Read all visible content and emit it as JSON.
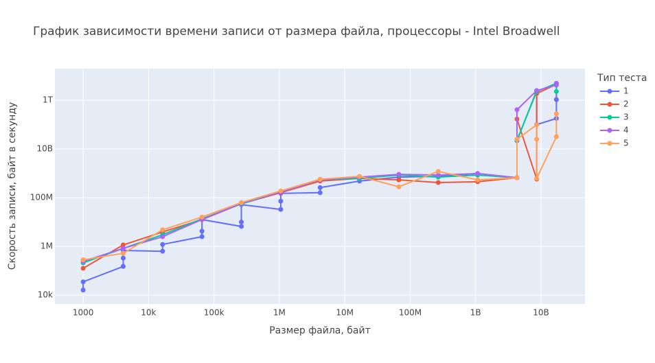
{
  "chart_data": {
    "type": "line",
    "title": "График зависимости времени записи от размера файла, процессоры - Intel Broadwell",
    "x_label": "Размер файла, байт",
    "y_label": "Скорость записи, байт в секунду",
    "legend_title": "Тип теста",
    "log_x": true,
    "log_y": true,
    "grid": true,
    "legend_position": "right",
    "xlim": [
      370,
      47000000000
    ],
    "ylim": [
      4300,
      20000000000000
    ],
    "xticks": [
      1000,
      {
        "value": 10000,
        "label": "10k"
      },
      {
        "value": 100000,
        "label": "100k"
      },
      {
        "value": 1000000,
        "label": "1M"
      },
      {
        "value": 10000000,
        "label": "10M"
      },
      {
        "value": 100000000,
        "label": "100M"
      },
      {
        "value": 1000000000,
        "label": "1B"
      },
      {
        "value": 10000000000,
        "label": "10B"
      }
    ],
    "yticks": [
      {
        "value": 10000,
        "label": "10k"
      },
      {
        "value": 1000000,
        "label": "1M"
      },
      {
        "value": 100000000,
        "label": "100M"
      },
      {
        "value": 10000000000,
        "label": "10B"
      },
      {
        "value": 1000000000000,
        "label": "1T"
      }
    ],
    "series": [
      {
        "name": "1",
        "color": "#636efa",
        "x": [
          1000,
          1000,
          4096,
          4096,
          4096,
          16384,
          16384,
          65536,
          65536,
          65536,
          262144,
          262144,
          262144,
          1048576,
          1048576,
          1048576,
          4194304,
          4194304,
          16777216,
          67108864,
          268435456,
          1073741824,
          4294967296,
          4294967296,
          8589934592,
          8589934592,
          17179869184,
          17179869184,
          17179869184
        ],
        "values": [
          16000,
          35000,
          150000,
          330000,
          680000,
          630000,
          1200000,
          2500000,
          4200000,
          12600000,
          6600000,
          10000000,
          52000000,
          33000000,
          72000000,
          150000000,
          160000000,
          260000000,
          480000000,
          700000000,
          750000000,
          980000000,
          660000000,
          22000000000,
          2500000000000,
          100000000000,
          180000000000,
          1070000000000,
          4700000000000
        ]
      },
      {
        "name": "2",
        "color": "#EF553B",
        "x": [
          1000,
          4096,
          16384,
          65536,
          262144,
          1048576,
          4194304,
          16777216,
          67108864,
          268435456,
          1073741824,
          4294967296,
          4294967296,
          8589934592,
          8589934592,
          17179869184
        ],
        "values": [
          126000,
          1150000,
          3900000,
          12600000,
          56000000,
          160000000,
          480000000,
          620000000,
          540000000,
          420000000,
          450000000,
          660000000,
          170000000000,
          580000000,
          1900000000000,
          4500000000000
        ]
      },
      {
        "name": "3",
        "color": "#00cc96",
        "x": [
          1000,
          4096,
          16384,
          65536,
          262144,
          1048576,
          4194304,
          16777216,
          67108864,
          268435456,
          1073741824,
          4294967296,
          4294967296,
          8589934592,
          17179869184,
          17179869184
        ],
        "values": [
          210000,
          830000,
          3000000,
          13500000,
          56000000,
          170000000,
          540000000,
          620000000,
          850000000,
          700000000,
          850000000,
          660000000,
          23000000000,
          2300000000000,
          5000000000000,
          2300000000000
        ]
      },
      {
        "name": "4",
        "color": "#ab63fa",
        "x": [
          1000,
          4096,
          16384,
          65536,
          262144,
          1048576,
          4194304,
          16777216,
          67108864,
          268435456,
          1073741824,
          4294967296,
          4294967296,
          8589934592,
          17179869184,
          17179869184
        ],
        "values": [
          240000,
          830000,
          2500000,
          12600000,
          59000000,
          170000000,
          540000000,
          700000000,
          910000000,
          850000000,
          980000000,
          660000000,
          410000000000,
          2500000000000,
          4200000000000,
          5000000000000
        ]
      },
      {
        "name": "5",
        "color": "#FFA15A",
        "x": [
          1000,
          4096,
          16384,
          65536,
          262144,
          1048576,
          4194304,
          16777216,
          67108864,
          268435456,
          1073741824,
          4294967296,
          4294967296,
          8589934592,
          8589934592,
          8589934592,
          17179869184,
          17179869184
        ],
        "values": [
          280000,
          520000,
          4800000,
          16000000,
          63000000,
          190000000,
          570000000,
          750000000,
          280000000,
          1200000000,
          540000000,
          660000000,
          25000000000,
          98000000000,
          25000000000,
          620000000,
          32000000000,
          280000000000
        ]
      }
    ]
  }
}
